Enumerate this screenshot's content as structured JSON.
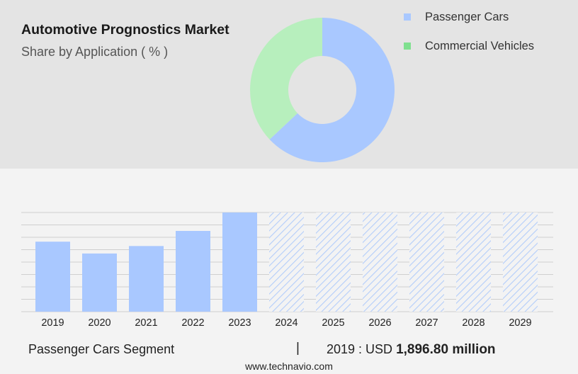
{
  "header": {
    "title": "Automotive Prognostics Market",
    "subtitle": "Share by Application ( % )"
  },
  "legend": [
    {
      "label": "Passenger Cars",
      "color": "#a9c8ff"
    },
    {
      "label": "Commercial Vehicles",
      "color": "#7fe08f"
    }
  ],
  "chart_data": [
    {
      "type": "pie",
      "donut": true,
      "categories": [
        "Passenger Cars",
        "Commercial Vehicles"
      ],
      "values": [
        63,
        37
      ],
      "colors": [
        "#a9c8ff",
        "#b7efbd"
      ]
    },
    {
      "type": "bar",
      "categories": [
        "2019",
        "2020",
        "2021",
        "2022",
        "2023",
        "2024",
        "2025",
        "2026",
        "2027",
        "2028",
        "2029"
      ],
      "values": [
        1896.8,
        1576.4,
        1778.5,
        2188.3,
        2687.4,
        null,
        null,
        null,
        null,
        null,
        null
      ],
      "forecast_categories": [
        "2024",
        "2025",
        "2026",
        "2027",
        "2028",
        "2029"
      ],
      "ylim": [
        0,
        2687.4
      ],
      "grid": true,
      "color": "#a9c8ff"
    }
  ],
  "footer": {
    "segment": "Passenger Cars Segment",
    "separator": "|",
    "year_prefix": "2019 : USD",
    "value": "1,896.80 million",
    "source": "www.technavio.com"
  }
}
